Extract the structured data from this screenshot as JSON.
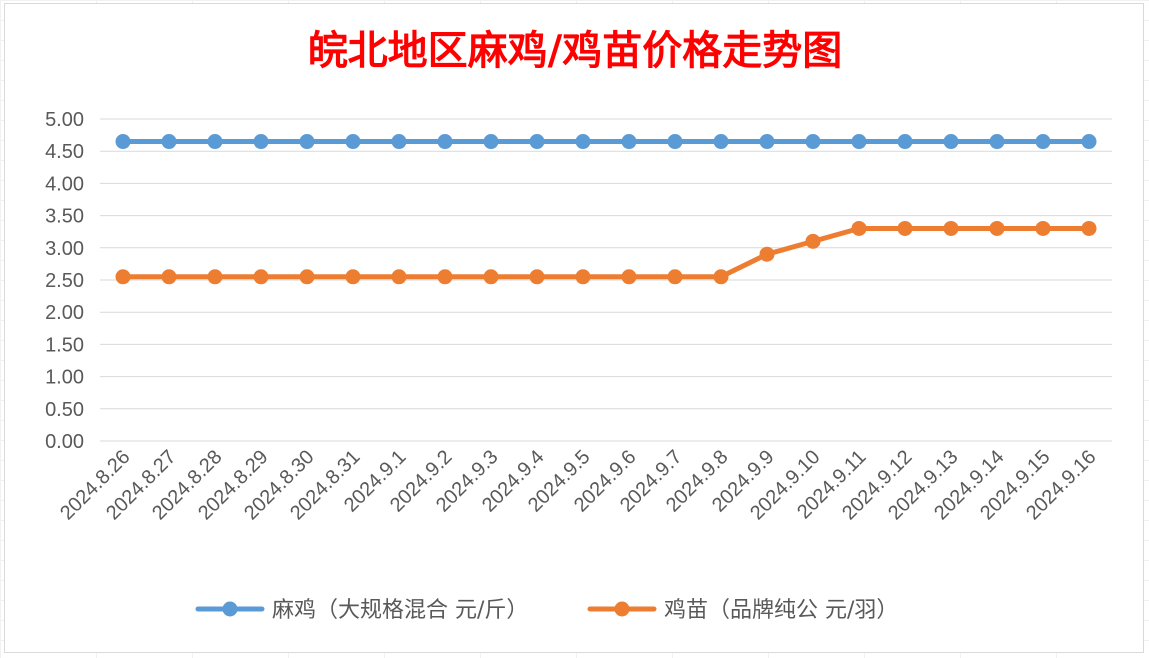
{
  "chart_data": {
    "type": "line",
    "title": "皖北地区麻鸡/鸡苗价格走势图",
    "title_color": "#ff0000",
    "categories": [
      "2024.8.26",
      "2024.8.27",
      "2024.8.28",
      "2024.8.29",
      "2024.8.30",
      "2024.8.31",
      "2024.9.1",
      "2024.9.2",
      "2024.9.3",
      "2024.9.4",
      "2024.9.5",
      "2024.9.6",
      "2024.9.7",
      "2024.9.8",
      "2024.9.9",
      "2024.9.10",
      "2024.9.11",
      "2024.9.12",
      "2024.9.13",
      "2024.9.14",
      "2024.9.15",
      "2024.9.16"
    ],
    "series": [
      {
        "name": "麻鸡（大规格混合 元/斤）",
        "color": "#5b9bd5",
        "values": [
          4.65,
          4.65,
          4.65,
          4.65,
          4.65,
          4.65,
          4.65,
          4.65,
          4.65,
          4.65,
          4.65,
          4.65,
          4.65,
          4.65,
          4.65,
          4.65,
          4.65,
          4.65,
          4.65,
          4.65,
          4.65,
          4.65
        ]
      },
      {
        "name": "鸡苗（品牌纯公 元/羽）",
        "color": "#ed7d31",
        "values": [
          2.55,
          2.55,
          2.55,
          2.55,
          2.55,
          2.55,
          2.55,
          2.55,
          2.55,
          2.55,
          2.55,
          2.55,
          2.55,
          2.55,
          2.9,
          3.1,
          3.3,
          3.3,
          3.3,
          3.3,
          3.3,
          3.3
        ]
      }
    ],
    "yticks": [
      "0.00",
      "0.50",
      "1.00",
      "1.50",
      "2.00",
      "2.50",
      "3.00",
      "3.50",
      "4.00",
      "4.50",
      "5.00"
    ],
    "ylim": [
      0,
      5
    ],
    "xlabel": "",
    "ylabel": "",
    "grid": true,
    "legend": "bottom"
  }
}
